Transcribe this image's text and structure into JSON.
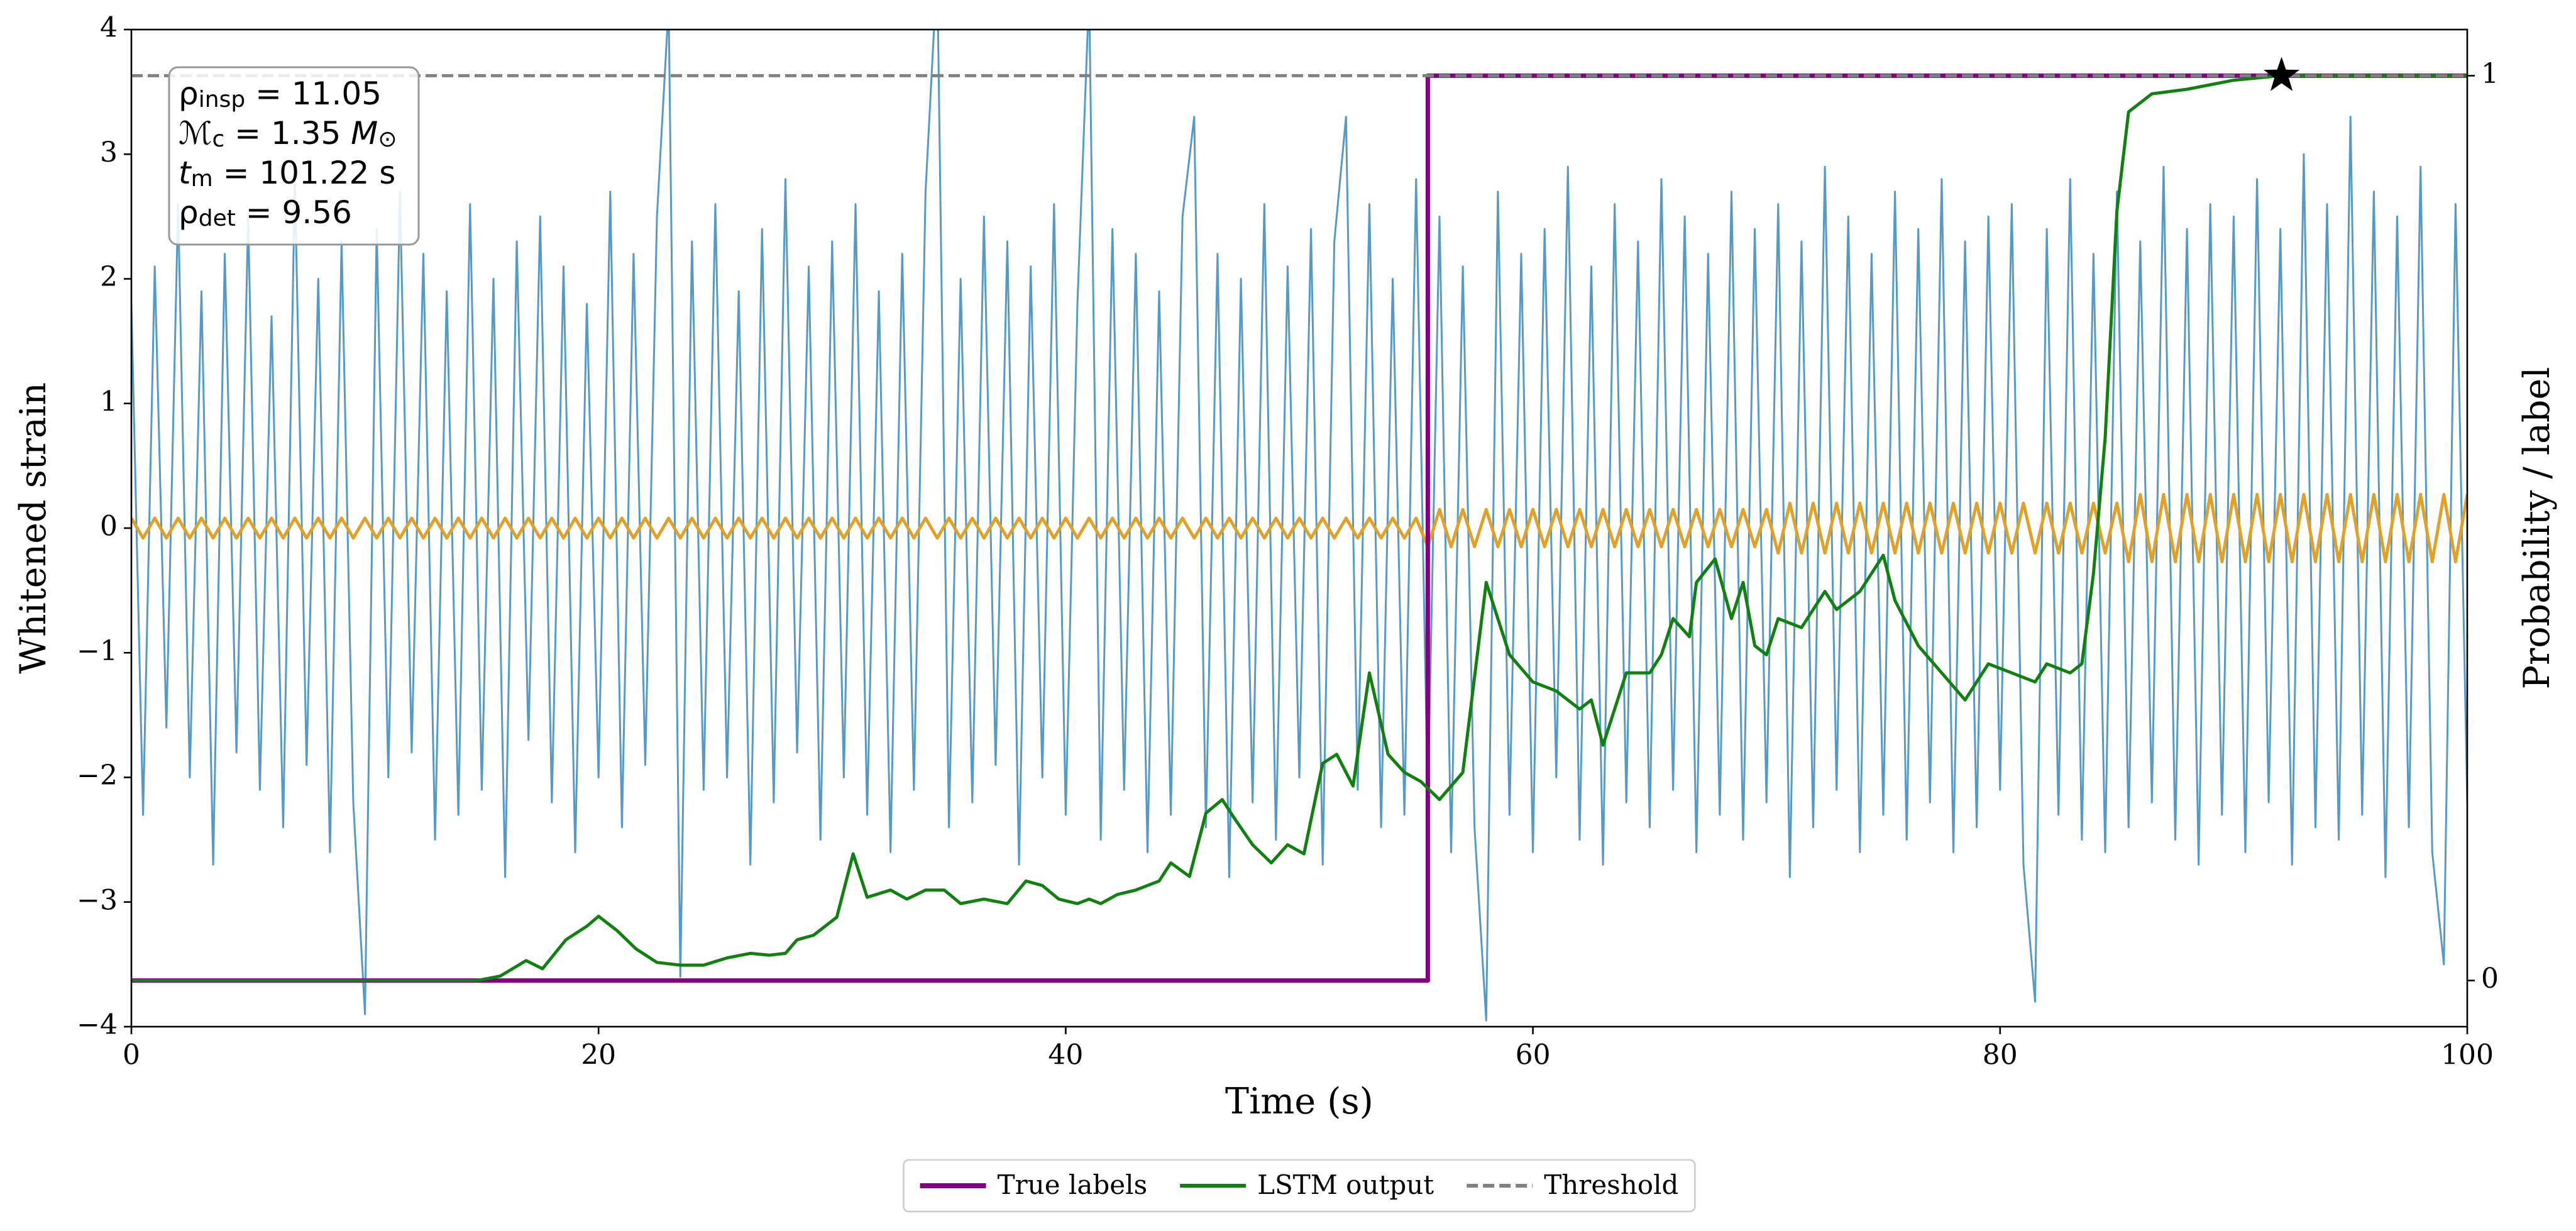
{
  "chart_data": {
    "type": "line",
    "xlabel": "Time (s)",
    "ylabel": "Whitened strain",
    "y2label": "Probability / label",
    "xlim": [
      0,
      100
    ],
    "xticks": [
      0,
      20,
      40,
      60,
      80,
      100
    ],
    "ylim": [
      -4,
      4
    ],
    "yticks": [
      {
        "value": -4,
        "label": "−4"
      },
      {
        "value": -3,
        "label": "−3"
      },
      {
        "value": -2,
        "label": "−2"
      },
      {
        "value": -1,
        "label": "−1"
      },
      0,
      1,
      2,
      3,
      4
    ],
    "y2lim": [
      -0.051,
      1.051
    ],
    "y2ticks": [
      0,
      1
    ],
    "grid": true,
    "legend": "lower center",
    "annotation": [
      [
        {
          "t": "ρ"
        },
        {
          "t": "insp",
          "sub": true
        },
        {
          "t": " = 11.05"
        }
      ],
      [
        {
          "t": "ℳ",
          "it": true
        },
        {
          "t": "c",
          "sub": true
        },
        {
          "t": " = 1.35 "
        },
        {
          "t": "M",
          "it": true
        },
        {
          "t": "⊙",
          "sub": true
        }
      ],
      [
        {
          "t": "t",
          "it": true
        },
        {
          "t": "m",
          "sub": true
        },
        {
          "t": " = 101.22 s"
        }
      ],
      [
        {
          "t": "ρ"
        },
        {
          "t": "det",
          "sub": true
        },
        {
          "t": " = 9.56"
        }
      ]
    ],
    "series": [
      {
        "color": "#5599c7",
        "width": 3,
        "x": [
          0,
          0.5,
          1,
          1.5,
          2,
          2.5,
          3,
          3.5,
          4,
          4.5,
          5,
          5.5,
          6,
          6.5,
          7,
          7.5,
          8,
          8.5,
          9,
          9.5,
          10,
          10.5,
          11,
          11.5,
          12,
          12.5,
          13,
          13.5,
          14,
          14.5,
          15,
          15.5,
          16,
          16.5,
          17,
          17.5,
          18,
          18.5,
          19,
          19.5,
          20,
          20.5,
          21,
          21.5,
          22,
          22.5,
          23,
          23.5,
          24,
          24.5,
          25,
          25.5,
          26,
          26.5,
          27,
          27.5,
          28,
          28.5,
          29,
          29.5,
          30,
          30.5,
          31,
          31.5,
          32,
          32.5,
          33,
          33.5,
          34,
          34.5,
          35,
          35.5,
          36,
          36.5,
          37,
          37.5,
          38,
          38.5,
          39,
          39.5,
          40,
          40.5,
          41,
          41.5,
          42,
          42.5,
          43,
          43.5,
          44,
          44.5,
          45,
          45.5,
          46,
          46.5,
          47,
          47.5,
          48,
          48.5,
          49,
          49.5,
          50,
          50.5,
          51,
          51.5,
          52,
          52.5,
          53,
          53.5,
          54,
          54.5,
          55,
          55.5,
          56,
          56.5,
          57,
          57.5,
          58,
          58.5,
          59,
          59.5,
          60,
          60.5,
          61,
          61.5,
          62,
          62.5,
          63,
          63.5,
          64,
          64.5,
          65,
          65.5,
          66,
          66.5,
          67,
          67.5,
          68,
          68.5,
          69,
          69.5,
          70,
          70.5,
          71,
          71.5,
          72,
          72.5,
          73,
          73.5,
          74,
          74.5,
          75,
          75.5,
          76,
          76.5,
          77,
          77.5,
          78,
          78.5,
          79,
          79.5,
          80,
          80.5,
          81,
          81.5,
          82,
          82.5,
          83,
          83.5,
          84,
          84.5,
          85,
          85.5,
          86,
          86.5,
          87,
          87.5,
          88,
          88.5,
          89,
          89.5,
          90,
          90.5,
          91,
          91.5,
          92,
          92.5,
          93,
          93.5,
          94,
          94.5,
          95,
          95.5,
          96,
          96.5,
          97,
          97.5,
          98,
          98.5,
          99,
          99.5,
          100
        ],
        "values": [
          1.8,
          -2.3,
          2.1,
          -1.6,
          2.6,
          -2.0,
          1.9,
          -2.7,
          2.2,
          -1.8,
          2.5,
          -2.1,
          1.7,
          -2.4,
          2.8,
          -1.9,
          2.0,
          -2.6,
          2.3,
          -2.2,
          -3.9,
          2.4,
          -2.0,
          2.7,
          -1.8,
          2.2,
          -2.5,
          1.9,
          -2.3,
          2.6,
          -2.1,
          2.0,
          -2.8,
          2.3,
          -1.7,
          2.5,
          -2.2,
          2.1,
          -2.6,
          1.8,
          -2.0,
          2.7,
          -2.4,
          2.2,
          -1.9,
          2.5,
          4.2,
          -3.6,
          2.3,
          -2.1,
          2.6,
          -2.0,
          1.9,
          -2.7,
          2.4,
          -2.2,
          2.8,
          -1.8,
          2.1,
          -2.5,
          2.3,
          -2.0,
          2.6,
          -2.3,
          1.9,
          -2.6,
          2.2,
          -2.1,
          2.7,
          4.5,
          -2.4,
          2.0,
          -2.2,
          2.5,
          -1.9,
          2.3,
          -2.7,
          2.1,
          -2.0,
          2.6,
          -2.3,
          1.8,
          4.3,
          -2.5,
          2.4,
          -2.1,
          2.2,
          -2.6,
          1.9,
          -2.3,
          2.5,
          3.3,
          -2.4,
          2.2,
          -2.8,
          2.0,
          -2.2,
          2.6,
          -2.5,
          2.1,
          -2.0,
          2.4,
          -2.7,
          2.3,
          3.3,
          -2.1,
          2.6,
          -2.4,
          2.0,
          -2.3,
          2.8,
          -2.2,
          2.5,
          -2.6,
          2.1,
          -2.4,
          -3.95,
          2.7,
          -2.3,
          2.2,
          -2.6,
          2.4,
          -2.0,
          2.9,
          -2.5,
          2.1,
          -2.7,
          2.6,
          -2.2,
          2.3,
          -2.4,
          2.8,
          -2.1,
          2.5,
          -2.6,
          2.2,
          -2.3,
          2.7,
          -2.5,
          2.4,
          -2.2,
          2.6,
          -2.8,
          2.3,
          -2.4,
          2.9,
          -2.1,
          2.5,
          -2.6,
          2.2,
          -2.3,
          2.7,
          -2.5,
          2.4,
          -2.2,
          2.8,
          -2.6,
          2.3,
          -2.4,
          2.5,
          -2.1,
          2.6,
          -2.7,
          -3.8,
          2.4,
          -2.3,
          2.8,
          -2.5,
          2.2,
          -2.6,
          2.7,
          -2.4,
          2.3,
          -2.2,
          2.9,
          -2.5,
          2.4,
          -2.7,
          2.6,
          -2.3,
          2.5,
          -2.6,
          2.8,
          -2.2,
          2.4,
          -2.7,
          3.0,
          -2.4,
          2.6,
          -2.5,
          3.3,
          -2.3,
          2.7,
          -2.8,
          2.5,
          -2.4,
          2.9,
          -2.6,
          -3.5,
          2.6,
          -2.2
        ]
      },
      {
        "color": "#e0a128",
        "width": 5,
        "x": [
          0,
          0.5,
          1,
          1.5,
          2,
          2.5,
          3,
          3.5,
          4,
          4.5,
          5,
          5.5,
          6,
          6.5,
          7,
          7.5,
          8,
          8.5,
          9,
          9.5,
          10,
          10.5,
          11,
          11.5,
          12,
          12.5,
          13,
          13.5,
          14,
          14.5,
          15,
          15.5,
          16,
          16.5,
          17,
          17.5,
          18,
          18.5,
          19,
          19.5,
          20,
          20.5,
          21,
          21.5,
          22,
          22.5,
          23,
          23.5,
          24,
          24.5,
          25,
          25.5,
          26,
          26.5,
          27,
          27.5,
          28,
          28.5,
          29,
          29.5,
          30,
          30.5,
          31,
          31.5,
          32,
          32.5,
          33,
          33.5,
          34,
          34.5,
          35,
          35.5,
          36,
          36.5,
          37,
          37.5,
          38,
          38.5,
          39,
          39.5,
          40,
          40.5,
          41,
          41.5,
          42,
          42.5,
          43,
          43.5,
          44,
          44.5,
          45,
          45.5,
          46,
          46.5,
          47,
          47.5,
          48,
          48.5,
          49,
          49.5,
          50,
          50.5,
          51,
          51.5,
          52,
          52.5,
          53,
          53.5,
          54,
          54.5,
          55,
          55.5,
          56,
          56.5,
          57,
          57.5,
          58,
          58.5,
          59,
          59.5,
          60,
          60.5,
          61,
          61.5,
          62,
          62.5,
          63,
          63.5,
          64,
          64.5,
          65,
          65.5,
          66,
          66.5,
          67,
          67.5,
          68,
          68.5,
          69,
          69.5,
          70,
          70.5,
          71,
          71.5,
          72,
          72.5,
          73,
          73.5,
          74,
          74.5,
          75,
          75.5,
          76,
          76.5,
          77,
          77.5,
          78,
          78.5,
          79,
          79.5,
          80,
          80.5,
          81,
          81.5,
          82,
          82.5,
          83,
          83.5,
          84,
          84.5,
          85,
          85.5,
          86,
          86.5,
          87,
          87.5,
          88,
          88.5,
          89,
          89.5,
          90,
          90.5,
          91,
          91.5,
          92,
          92.5,
          93,
          93.5,
          94,
          94.5,
          95,
          95.5,
          96,
          96.5,
          97,
          97.5,
          98,
          98.5,
          99,
          99.5,
          100
        ],
        "values": [
          0.08,
          -0.08,
          0.08,
          -0.08,
          0.08,
          -0.08,
          0.08,
          -0.08,
          0.08,
          -0.08,
          0.08,
          -0.08,
          0.08,
          -0.08,
          0.08,
          -0.08,
          0.08,
          -0.08,
          0.08,
          -0.08,
          0.08,
          -0.08,
          0.08,
          -0.08,
          0.08,
          -0.08,
          0.08,
          -0.08,
          0.08,
          -0.08,
          0.08,
          -0.08,
          0.08,
          -0.08,
          0.08,
          -0.08,
          0.08,
          -0.08,
          0.08,
          -0.08,
          0.08,
          -0.08,
          0.08,
          -0.08,
          0.08,
          -0.08,
          0.08,
          -0.08,
          0.08,
          -0.08,
          0.08,
          -0.08,
          0.08,
          -0.08,
          0.08,
          -0.08,
          0.08,
          -0.08,
          0.08,
          -0.08,
          0.08,
          -0.08,
          0.08,
          -0.08,
          0.08,
          -0.08,
          0.08,
          -0.08,
          0.08,
          -0.08,
          0.08,
          -0.08,
          0.08,
          -0.08,
          0.08,
          -0.08,
          0.08,
          -0.08,
          0.08,
          -0.08,
          0.08,
          -0.08,
          0.08,
          -0.08,
          0.08,
          -0.08,
          0.08,
          -0.08,
          0.08,
          -0.08,
          0.08,
          -0.08,
          0.08,
          -0.08,
          0.08,
          -0.08,
          0.08,
          -0.08,
          0.08,
          -0.08,
          0.08,
          -0.08,
          0.08,
          -0.08,
          0.08,
          -0.08,
          0.08,
          -0.08,
          0.08,
          -0.08,
          0.08,
          -0.15,
          0.15,
          -0.15,
          0.15,
          -0.15,
          0.15,
          -0.15,
          0.15,
          -0.15,
          0.15,
          -0.15,
          0.15,
          -0.15,
          0.15,
          -0.15,
          0.15,
          -0.15,
          0.15,
          -0.15,
          0.15,
          -0.15,
          0.15,
          -0.15,
          0.15,
          -0.15,
          0.15,
          -0.15,
          0.15,
          -0.15,
          0.15,
          -0.2,
          0.2,
          -0.2,
          0.2,
          -0.2,
          0.2,
          -0.2,
          0.2,
          -0.2,
          0.2,
          -0.2,
          0.2,
          -0.2,
          0.2,
          -0.2,
          0.2,
          -0.2,
          0.2,
          -0.2,
          0.2,
          -0.2,
          0.2,
          -0.2,
          0.2,
          -0.2,
          0.2,
          -0.2,
          0.2,
          -0.2,
          0.2,
          -0.27,
          0.27,
          -0.27,
          0.27,
          -0.27,
          0.27,
          -0.27,
          0.27,
          -0.27,
          0.27,
          -0.27,
          0.27,
          -0.27,
          0.27,
          -0.27,
          0.27,
          -0.27,
          0.27,
          -0.27,
          0.27,
          -0.27,
          0.27,
          -0.27,
          0.27,
          -0.27,
          0.27,
          -0.27,
          0.27,
          -0.27,
          0.27
        ]
      },
      {
        "name": "True labels",
        "color": "#800080",
        "width": 7,
        "axis": "y2",
        "x": [
          0,
          55.5,
          55.5,
          100
        ],
        "values": [
          0,
          0,
          1,
          1
        ]
      },
      {
        "name": "LSTM output",
        "color": "#118011",
        "width": 5,
        "axis": "y2",
        "x": [
          0,
          14.8,
          15.8,
          16.9,
          17.6,
          18.6,
          19.5,
          20.0,
          20.8,
          21.6,
          22.5,
          23.5,
          24.5,
          25.5,
          26.5,
          27.3,
          28.0,
          28.5,
          29.2,
          30.2,
          30.9,
          31.5,
          32.5,
          33.2,
          34.0,
          34.8,
          35.5,
          36.5,
          37.5,
          38.3,
          39.0,
          39.7,
          40.5,
          41.0,
          41.5,
          42.2,
          43.0,
          44.0,
          44.5,
          45.3,
          46.0,
          46.7,
          47.2,
          48.0,
          48.8,
          49.5,
          50.2,
          51.0,
          51.6,
          52.3,
          53.0,
          53.8,
          54.5,
          55.2,
          56.0,
          57.0,
          58.0,
          59.0,
          60.0,
          61.0,
          62.0,
          62.5,
          63.0,
          64.0,
          65.0,
          65.5,
          66.0,
          66.7,
          67.0,
          67.8,
          68.5,
          69.0,
          69.5,
          70.0,
          70.5,
          71.5,
          72.5,
          73.0,
          74.0,
          75.0,
          75.5,
          76.5,
          77.5,
          78.5,
          79.5,
          80.5,
          81.5,
          82.0,
          83.0,
          83.5,
          84.0,
          84.5,
          85.0,
          85.5,
          86.5,
          88.0,
          90.0,
          92.0,
          100
        ],
        "values": [
          0,
          0,
          0.005,
          0.022,
          0.013,
          0.045,
          0.06,
          0.071,
          0.055,
          0.035,
          0.02,
          0.017,
          0.017,
          0.025,
          0.03,
          0.028,
          0.03,
          0.045,
          0.05,
          0.07,
          0.14,
          0.092,
          0.1,
          0.09,
          0.1,
          0.1,
          0.085,
          0.09,
          0.085,
          0.11,
          0.105,
          0.09,
          0.085,
          0.09,
          0.085,
          0.095,
          0.1,
          0.11,
          0.13,
          0.115,
          0.185,
          0.2,
          0.18,
          0.15,
          0.13,
          0.15,
          0.14,
          0.24,
          0.25,
          0.215,
          0.34,
          0.25,
          0.23,
          0.22,
          0.2,
          0.23,
          0.44,
          0.36,
          0.33,
          0.32,
          0.3,
          0.31,
          0.26,
          0.34,
          0.34,
          0.36,
          0.4,
          0.38,
          0.44,
          0.466,
          0.4,
          0.44,
          0.37,
          0.36,
          0.4,
          0.39,
          0.43,
          0.41,
          0.43,
          0.47,
          0.42,
          0.37,
          0.34,
          0.31,
          0.35,
          0.34,
          0.33,
          0.35,
          0.34,
          0.35,
          0.45,
          0.6,
          0.85,
          0.96,
          0.98,
          0.985,
          0.995,
          1,
          1
        ]
      },
      {
        "name": "Threshold",
        "color": "#808080",
        "width": 5,
        "axis": "y2",
        "dash": true,
        "x": [
          0,
          100
        ],
        "values": [
          1,
          1
        ]
      }
    ],
    "marker": {
      "x": 92.05,
      "y": 1,
      "axis": "y2",
      "symbol": "star",
      "color": "#000000"
    }
  }
}
